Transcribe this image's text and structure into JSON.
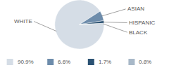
{
  "chart_data": {
    "type": "pie",
    "categories": [
      "WHITE",
      "ASIAN",
      "HISPANIC",
      "BLACK"
    ],
    "values": [
      90.9,
      6.6,
      1.7,
      0.8
    ],
    "value_labels": [
      "90.9%",
      "6.6%",
      "1.7%",
      "0.8%"
    ],
    "colors": [
      "#d5dde6",
      "#6d8cab",
      "#2b5273",
      "#a8b8c8"
    ]
  }
}
